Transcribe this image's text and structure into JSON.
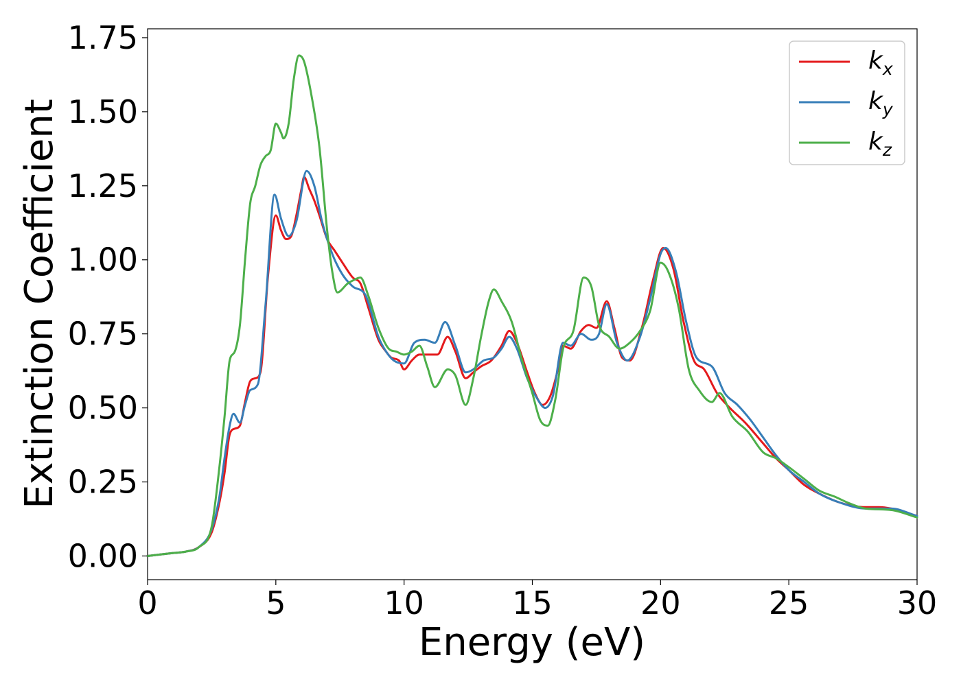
{
  "chart_data": {
    "type": "line",
    "xlabel": "Energy (eV)",
    "ylabel": "Extinction Coefficient",
    "xlim": [
      0,
      30
    ],
    "ylim": [
      -0.08,
      1.78
    ],
    "x_ticks": [
      0,
      5,
      10,
      15,
      20,
      25,
      30
    ],
    "x_tick_labels": [
      "0",
      "5",
      "10",
      "15",
      "20",
      "25",
      "30"
    ],
    "y_ticks": [
      0,
      0.25,
      0.5,
      0.75,
      1.0,
      1.25,
      1.5,
      1.75
    ],
    "y_tick_labels": [
      "0.00",
      "0.25",
      "0.50",
      "0.75",
      "1.00",
      "1.25",
      "1.50",
      "1.75"
    ],
    "grid": false,
    "legend_position": "top-right",
    "series": [
      {
        "name": "k",
        "subscript": "x",
        "color": "#e41a1c",
        "points": [
          [
            0,
            0
          ],
          [
            1,
            0.01
          ],
          [
            1.5,
            0.015
          ],
          [
            2,
            0.03
          ],
          [
            2.5,
            0.08
          ],
          [
            2.8,
            0.18
          ],
          [
            3,
            0.28
          ],
          [
            3.2,
            0.41
          ],
          [
            3.4,
            0.43
          ],
          [
            3.6,
            0.44
          ],
          [
            3.8,
            0.52
          ],
          [
            4,
            0.59
          ],
          [
            4.2,
            0.6
          ],
          [
            4.4,
            0.62
          ],
          [
            4.7,
            0.95
          ],
          [
            5,
            1.15
          ],
          [
            5.2,
            1.1
          ],
          [
            5.4,
            1.07
          ],
          [
            5.6,
            1.08
          ],
          [
            5.8,
            1.15
          ],
          [
            6,
            1.24
          ],
          [
            6.1,
            1.28
          ],
          [
            6.3,
            1.24
          ],
          [
            6.5,
            1.2
          ],
          [
            6.7,
            1.15
          ],
          [
            7,
            1.07
          ],
          [
            7.3,
            1.03
          ],
          [
            7.6,
            0.99
          ],
          [
            8,
            0.94
          ],
          [
            8.3,
            0.92
          ],
          [
            8.6,
            0.84
          ],
          [
            9,
            0.73
          ],
          [
            9.3,
            0.69
          ],
          [
            9.5,
            0.67
          ],
          [
            9.8,
            0.66
          ],
          [
            10,
            0.63
          ],
          [
            10.3,
            0.66
          ],
          [
            10.6,
            0.68
          ],
          [
            11,
            0.68
          ],
          [
            11.3,
            0.68
          ],
          [
            11.7,
            0.74
          ],
          [
            12,
            0.69
          ],
          [
            12.4,
            0.6
          ],
          [
            12.7,
            0.62
          ],
          [
            13,
            0.64
          ],
          [
            13.4,
            0.66
          ],
          [
            13.8,
            0.71
          ],
          [
            14.1,
            0.76
          ],
          [
            14.4,
            0.72
          ],
          [
            14.8,
            0.62
          ],
          [
            15.1,
            0.55
          ],
          [
            15.4,
            0.51
          ],
          [
            15.7,
            0.54
          ],
          [
            16,
            0.63
          ],
          [
            16.2,
            0.71
          ],
          [
            16.5,
            0.7
          ],
          [
            16.9,
            0.76
          ],
          [
            17.2,
            0.78
          ],
          [
            17.5,
            0.77
          ],
          [
            17.9,
            0.86
          ],
          [
            18.2,
            0.77
          ],
          [
            18.5,
            0.67
          ],
          [
            18.8,
            0.66
          ],
          [
            19.3,
            0.78
          ],
          [
            19.7,
            0.93
          ],
          [
            20.1,
            1.04
          ],
          [
            20.5,
            0.97
          ],
          [
            20.9,
            0.79
          ],
          [
            21.3,
            0.66
          ],
          [
            21.7,
            0.63
          ],
          [
            22.2,
            0.55
          ],
          [
            22.7,
            0.5
          ],
          [
            23.3,
            0.45
          ],
          [
            24,
            0.38
          ],
          [
            24.5,
            0.33
          ],
          [
            25,
            0.29
          ],
          [
            25.6,
            0.24
          ],
          [
            26.2,
            0.21
          ],
          [
            27,
            0.18
          ],
          [
            28,
            0.165
          ],
          [
            28.5,
            0.165
          ],
          [
            29,
            0.16
          ],
          [
            30,
            0.135
          ]
        ]
      },
      {
        "name": "k",
        "subscript": "y",
        "color": "#377eb8",
        "points": [
          [
            0,
            0
          ],
          [
            1,
            0.01
          ],
          [
            1.5,
            0.015
          ],
          [
            2,
            0.03
          ],
          [
            2.5,
            0.09
          ],
          [
            2.8,
            0.2
          ],
          [
            3,
            0.33
          ],
          [
            3.2,
            0.44
          ],
          [
            3.35,
            0.48
          ],
          [
            3.6,
            0.45
          ],
          [
            3.8,
            0.51
          ],
          [
            4,
            0.56
          ],
          [
            4.3,
            0.58
          ],
          [
            4.6,
            0.85
          ],
          [
            4.95,
            1.22
          ],
          [
            5.2,
            1.14
          ],
          [
            5.5,
            1.08
          ],
          [
            5.8,
            1.13
          ],
          [
            6.2,
            1.3
          ],
          [
            6.5,
            1.25
          ],
          [
            6.8,
            1.13
          ],
          [
            7.2,
            1.02
          ],
          [
            7.6,
            0.95
          ],
          [
            8,
            0.91
          ],
          [
            8.5,
            0.88
          ],
          [
            9,
            0.74
          ],
          [
            9.3,
            0.69
          ],
          [
            9.6,
            0.66
          ],
          [
            10,
            0.65
          ],
          [
            10.4,
            0.72
          ],
          [
            10.8,
            0.73
          ],
          [
            11.2,
            0.72
          ],
          [
            11.6,
            0.79
          ],
          [
            12,
            0.71
          ],
          [
            12.4,
            0.62
          ],
          [
            12.7,
            0.63
          ],
          [
            13.1,
            0.66
          ],
          [
            13.5,
            0.67
          ],
          [
            13.8,
            0.7
          ],
          [
            14.1,
            0.74
          ],
          [
            14.4,
            0.7
          ],
          [
            14.8,
            0.6
          ],
          [
            15.2,
            0.53
          ],
          [
            15.5,
            0.5
          ],
          [
            15.8,
            0.54
          ],
          [
            16.2,
            0.72
          ],
          [
            16.5,
            0.71
          ],
          [
            16.9,
            0.75
          ],
          [
            17.3,
            0.73
          ],
          [
            17.6,
            0.75
          ],
          [
            17.9,
            0.85
          ],
          [
            18.3,
            0.72
          ],
          [
            18.7,
            0.66
          ],
          [
            19.2,
            0.74
          ],
          [
            19.6,
            0.87
          ],
          [
            20,
            1.02
          ],
          [
            20.2,
            1.04
          ],
          [
            20.6,
            0.96
          ],
          [
            21,
            0.79
          ],
          [
            21.4,
            0.67
          ],
          [
            22,
            0.64
          ],
          [
            22.5,
            0.55
          ],
          [
            23,
            0.51
          ],
          [
            23.5,
            0.46
          ],
          [
            24,
            0.4
          ],
          [
            24.5,
            0.34
          ],
          [
            25,
            0.29
          ],
          [
            25.6,
            0.25
          ],
          [
            26.2,
            0.21
          ],
          [
            27,
            0.18
          ],
          [
            28,
            0.16
          ],
          [
            29,
            0.16
          ],
          [
            30,
            0.135
          ]
        ]
      },
      {
        "name": "k",
        "subscript": "z",
        "color": "#4daf4a",
        "points": [
          [
            0,
            0
          ],
          [
            1,
            0.01
          ],
          [
            1.5,
            0.015
          ],
          [
            2,
            0.03
          ],
          [
            2.5,
            0.1
          ],
          [
            2.8,
            0.3
          ],
          [
            3,
            0.47
          ],
          [
            3.2,
            0.66
          ],
          [
            3.4,
            0.69
          ],
          [
            3.6,
            0.78
          ],
          [
            3.8,
            1.0
          ],
          [
            4,
            1.19
          ],
          [
            4.2,
            1.25
          ],
          [
            4.4,
            1.32
          ],
          [
            4.6,
            1.35
          ],
          [
            4.8,
            1.37
          ],
          [
            5,
            1.46
          ],
          [
            5.2,
            1.43
          ],
          [
            5.3,
            1.41
          ],
          [
            5.5,
            1.46
          ],
          [
            5.7,
            1.61
          ],
          [
            5.9,
            1.69
          ],
          [
            6.1,
            1.67
          ],
          [
            6.4,
            1.55
          ],
          [
            6.7,
            1.38
          ],
          [
            7,
            1.1
          ],
          [
            7.2,
            0.96
          ],
          [
            7.4,
            0.89
          ],
          [
            7.8,
            0.92
          ],
          [
            8,
            0.93
          ],
          [
            8.3,
            0.94
          ],
          [
            8.6,
            0.88
          ],
          [
            9,
            0.77
          ],
          [
            9.4,
            0.7
          ],
          [
            9.7,
            0.69
          ],
          [
            10,
            0.68
          ],
          [
            10.3,
            0.69
          ],
          [
            10.6,
            0.71
          ],
          [
            10.9,
            0.64
          ],
          [
            11.2,
            0.57
          ],
          [
            11.7,
            0.63
          ],
          [
            12,
            0.61
          ],
          [
            12.4,
            0.51
          ],
          [
            12.7,
            0.6
          ],
          [
            13,
            0.74
          ],
          [
            13.3,
            0.86
          ],
          [
            13.5,
            0.9
          ],
          [
            13.8,
            0.86
          ],
          [
            14.2,
            0.79
          ],
          [
            14.6,
            0.66
          ],
          [
            15,
            0.55
          ],
          [
            15.3,
            0.46
          ],
          [
            15.6,
            0.44
          ],
          [
            15.9,
            0.53
          ],
          [
            16.2,
            0.7
          ],
          [
            16.6,
            0.76
          ],
          [
            17,
            0.94
          ],
          [
            17.3,
            0.91
          ],
          [
            17.6,
            0.78
          ],
          [
            18,
            0.74
          ],
          [
            18.4,
            0.7
          ],
          [
            18.8,
            0.72
          ],
          [
            19.2,
            0.76
          ],
          [
            19.6,
            0.83
          ],
          [
            20,
            0.99
          ],
          [
            20.3,
            0.96
          ],
          [
            20.7,
            0.84
          ],
          [
            21.1,
            0.63
          ],
          [
            21.5,
            0.56
          ],
          [
            22,
            0.52
          ],
          [
            22.3,
            0.55
          ],
          [
            22.8,
            0.47
          ],
          [
            23.4,
            0.42
          ],
          [
            24,
            0.35
          ],
          [
            24.5,
            0.33
          ],
          [
            25,
            0.3
          ],
          [
            25.6,
            0.26
          ],
          [
            26.2,
            0.22
          ],
          [
            26.8,
            0.2
          ],
          [
            27.3,
            0.18
          ],
          [
            28,
            0.16
          ],
          [
            29,
            0.155
          ],
          [
            30,
            0.13
          ]
        ]
      }
    ]
  }
}
